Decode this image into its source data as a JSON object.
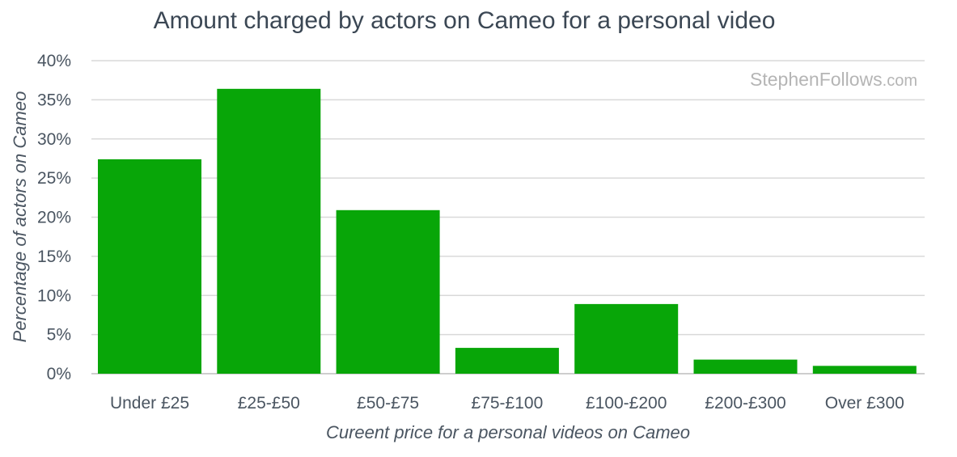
{
  "chart_data": {
    "type": "bar",
    "title": "Amount charged by actors on Cameo for a personal video",
    "xlabel": "Cureent price for a personal videos on Cameo",
    "ylabel": "Percentage of actors on Cameo",
    "categories": [
      "Under £25",
      "£25-£50",
      "£50-£75",
      "£75-£100",
      "£100-£200",
      "£200-£300",
      "Over £300"
    ],
    "values": [
      27.4,
      36.4,
      20.9,
      3.3,
      8.9,
      1.8,
      1.0
    ],
    "ylim": [
      0,
      40
    ],
    "yticks": [
      0,
      5,
      10,
      15,
      20,
      25,
      30,
      35,
      40
    ],
    "ytick_labels": [
      "0%",
      "5%",
      "10%",
      "15%",
      "20%",
      "25%",
      "30%",
      "35%",
      "40%"
    ],
    "grid": true,
    "legend": "none",
    "bar_color": "#08a608"
  },
  "watermark": {
    "name": "StephenFollows",
    "suffix": ".com"
  },
  "colors": {
    "bar": "#08a608",
    "title": "#3b4754",
    "text": "#4a5561",
    "grid": "#d9d9d9",
    "watermark": "#b5b5b5"
  }
}
